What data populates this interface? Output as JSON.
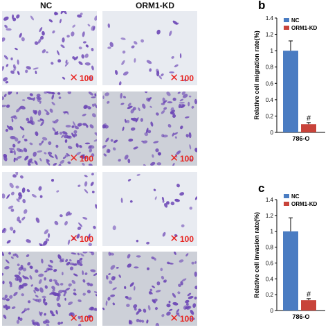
{
  "columns": [
    "NC",
    "ORM1-KD"
  ],
  "magnification": "100",
  "micrographs": [
    {
      "row": 0,
      "group": "NC",
      "density": 70,
      "tone": "light"
    },
    {
      "row": 0,
      "group": "ORM1-KD",
      "density": 28,
      "tone": "light"
    },
    {
      "row": 1,
      "group": "NC",
      "density": 150,
      "tone": "gray"
    },
    {
      "row": 1,
      "group": "ORM1-KD",
      "density": 95,
      "tone": "gray"
    },
    {
      "row": 2,
      "group": "NC",
      "density": 60,
      "tone": "light"
    },
    {
      "row": 2,
      "group": "ORM1-KD",
      "density": 22,
      "tone": "light"
    },
    {
      "row": 3,
      "group": "NC",
      "density": 160,
      "tone": "gray"
    },
    {
      "row": 3,
      "group": "ORM1-KD",
      "density": 90,
      "tone": "gray"
    }
  ],
  "colors": {
    "nc": "#4a7cc2",
    "kd": "#c8433a",
    "cell": "#6b45b5",
    "error": "#000000"
  },
  "chart_data": [
    {
      "panel": "b",
      "type": "bar",
      "categories": [
        "786-O"
      ],
      "series": [
        {
          "name": "NC",
          "values": [
            1.0
          ],
          "error": [
            0.12
          ]
        },
        {
          "name": "ORM1-KD",
          "values": [
            0.1
          ],
          "error": [
            0.02
          ]
        }
      ],
      "annotations": [
        {
          "series": "ORM1-KD",
          "text": "#"
        }
      ],
      "ylabel": "Relative cell migration rate(%)",
      "xlabel": "786-O",
      "ylim": [
        0,
        1.4
      ],
      "yticks": [
        "0",
        "0.2",
        "0.4",
        "0.6",
        "0.8",
        "1",
        "1.2",
        "1.4"
      ],
      "legend": "top-left"
    },
    {
      "panel": "c",
      "type": "bar",
      "categories": [
        "786-O"
      ],
      "series": [
        {
          "name": "NC",
          "values": [
            1.0
          ],
          "error": [
            0.17
          ]
        },
        {
          "name": "ORM1-KD",
          "values": [
            0.13
          ],
          "error": [
            0.02
          ]
        }
      ],
      "annotations": [
        {
          "series": "ORM1-KD",
          "text": "#"
        }
      ],
      "ylabel": "Relative cell invasion rate(%)",
      "xlabel": "786-O",
      "ylim": [
        0,
        1.4
      ],
      "yticks": [
        "0",
        "0.2",
        "0.4",
        "0.6",
        "0.8",
        "1",
        "1.2",
        "1.4"
      ],
      "legend": "top-left"
    }
  ]
}
